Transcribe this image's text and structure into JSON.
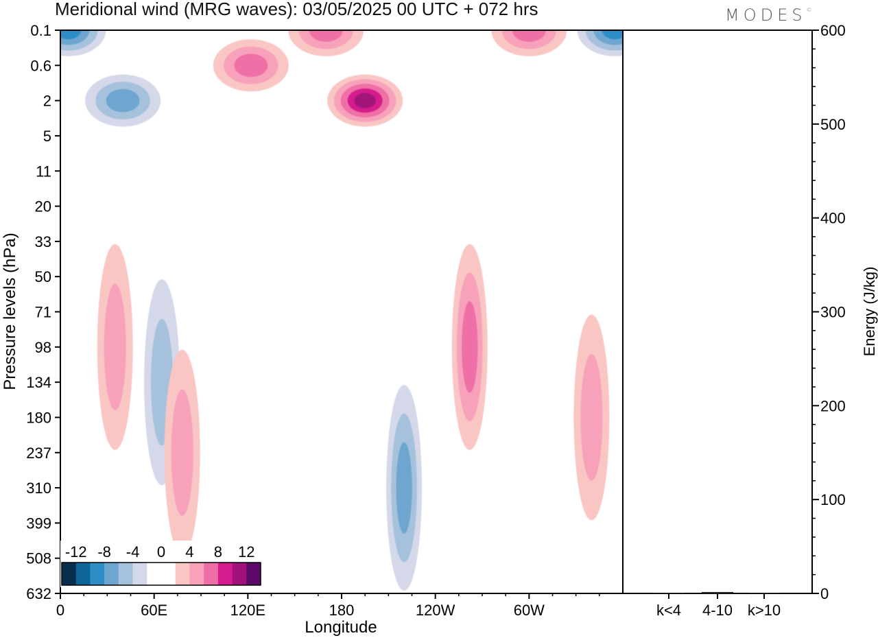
{
  "title": "Meridional wind (MRG waves):  03/05/2025  00 UTC  + 072 hrs",
  "brand": "MODES",
  "chart_data": [
    {
      "type": "heatmap",
      "title": "Meridional wind (MRG waves):  03/05/2025  00 UTC  + 072 hrs",
      "xlabel": "Longitude",
      "ylabel": "Pressure levels (hPa)",
      "x_ticks": [
        "0",
        "60E",
        "120E",
        "180",
        "120W",
        "60W"
      ],
      "x_tick_values": [
        0,
        60,
        120,
        180,
        240,
        300
      ],
      "xlim": [
        0,
        360
      ],
      "y_ticks": [
        "0.1",
        "0.6",
        "2",
        "5",
        "11",
        "20",
        "33",
        "50",
        "71",
        "98",
        "134",
        "180",
        "237",
        "310",
        "399",
        "508",
        "632"
      ],
      "y_order": "top-to-bottom",
      "colorbar": {
        "labels": [
          "-12",
          "-8",
          "-4",
          "0",
          "4",
          "8",
          "12"
        ],
        "colors": [
          "#0a2f4e",
          "#0e6598",
          "#2f8dc6",
          "#6ea6d0",
          "#a6c1dc",
          "#d4d8e8",
          "#ffffff",
          "#ffffff",
          "#f9c6c4",
          "#f7a1ba",
          "#ee6fa6",
          "#d51b8d",
          "#a0127a",
          "#5b0a66"
        ],
        "placement": "bottom-left"
      },
      "features": [
        {
          "lon": 195,
          "level": "2",
          "sign": "positive",
          "peak": 12
        },
        {
          "lon": 170,
          "level": "0.1",
          "sign": "positive",
          "peak": 8
        },
        {
          "lon": 122,
          "level": "0.6",
          "sign": "positive",
          "peak": 8
        },
        {
          "lon": 300,
          "level": "0.1",
          "sign": "positive",
          "peak": 8
        },
        {
          "lon": 40,
          "level": "2",
          "sign": "negative",
          "peak": -8
        },
        {
          "lon": 5,
          "level": "0.1",
          "sign": "negative",
          "peak": -10
        },
        {
          "lon": 355,
          "level": "0.1",
          "sign": "negative",
          "peak": -10
        },
        {
          "lon": 35,
          "level": "98",
          "sign": "positive",
          "peak": 6
        },
        {
          "lon": 65,
          "level": "134",
          "sign": "negative",
          "peak": -6
        },
        {
          "lon": 78,
          "level": "237",
          "sign": "positive",
          "peak": 6
        },
        {
          "lon": 220,
          "level": "310",
          "sign": "negative",
          "peak": -8
        },
        {
          "lon": 262,
          "level": "98",
          "sign": "positive",
          "peak": 8
        },
        {
          "lon": 340,
          "level": "180",
          "sign": "positive",
          "peak": 6
        }
      ]
    },
    {
      "type": "bar",
      "ylabel": "Energy (J/kg)",
      "categories": [
        "k<4",
        "4-10",
        "k>10"
      ],
      "values": [
        0.3,
        1.5,
        0.3
      ],
      "ylim": [
        0,
        600
      ],
      "y_ticks": [
        "0",
        "100",
        "200",
        "300",
        "400",
        "500",
        "600"
      ]
    }
  ]
}
